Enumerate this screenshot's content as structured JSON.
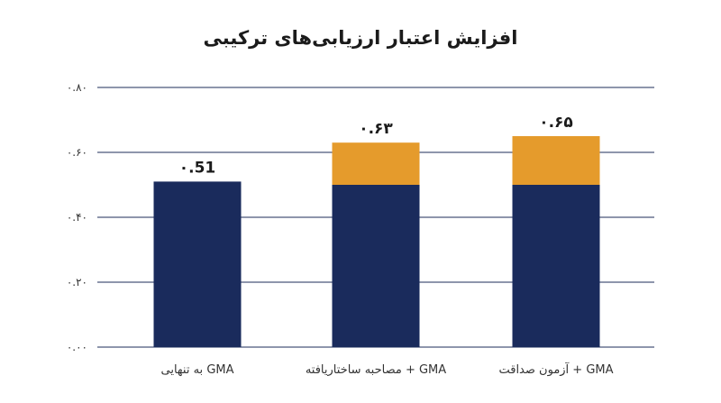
{
  "chart_data": {
    "type": "bar",
    "stacked": true,
    "title": "افزایش اعتبار ارزیابی‌های ترکیبی",
    "categories": [
      "GMA به تنهایی",
      "GMA + مصاحبه ساختاریافته",
      "GMA + آزمون صداقت"
    ],
    "series": [
      {
        "values": [
          0.51,
          0.5,
          0.5
        ],
        "color": "#1a2b5c"
      },
      {
        "values": [
          0,
          0.13,
          0.15
        ],
        "color": "#e59b2c"
      }
    ],
    "totals": [
      0.51,
      0.63,
      0.65
    ],
    "data_labels": [
      "۰.51",
      "۰.۶۳",
      "۰.۶۵"
    ],
    "y_ticks": [
      0,
      0.2,
      0.4,
      0.6,
      0.8
    ],
    "y_tick_labels": [
      "۰.۰۰",
      "۰.۲۰",
      "۰.۴۰",
      "۰.۶۰",
      "۰.۸۰"
    ],
    "ylim": [
      0,
      0.8
    ],
    "grid": true,
    "legend": "none"
  }
}
